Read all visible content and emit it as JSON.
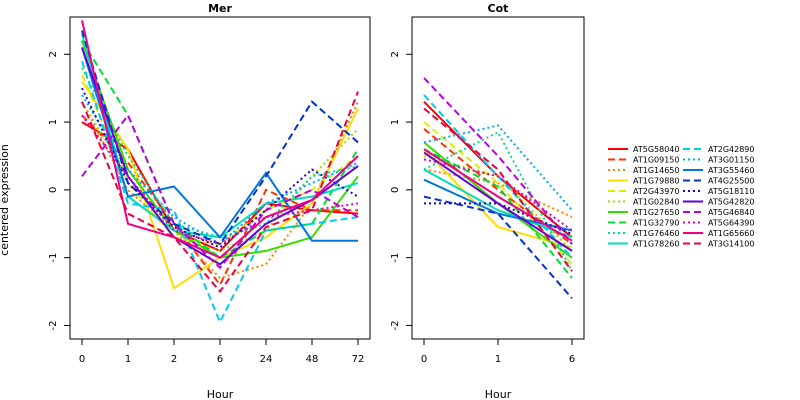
{
  "chart_data": {
    "type": "line",
    "ylabel": "centered expression",
    "panels": [
      {
        "title": "Mer",
        "xlabel": "Hour",
        "categories": [
          "0",
          "1",
          "2",
          "6",
          "24",
          "48",
          "72"
        ],
        "ylim": [
          -2.2,
          2.55
        ],
        "yticks": [
          -2,
          -1,
          0,
          1,
          2
        ],
        "series": [
          {
            "name": "AT5G58040",
            "values": [
              1.0,
              0.6,
              -0.6,
              -0.9,
              -0.2,
              -0.3,
              -0.35
            ]
          },
          {
            "name": "AT1G09150",
            "values": [
              1.1,
              0.4,
              -0.5,
              -1.4,
              0.0,
              -0.3,
              -0.3
            ]
          },
          {
            "name": "AT1G14650",
            "values": [
              1.3,
              0.0,
              -0.6,
              -1.3,
              -1.1,
              -0.2,
              1.3
            ]
          },
          {
            "name": "AT1G79880",
            "values": [
              1.6,
              0.6,
              -1.45,
              -1.0,
              -0.7,
              -0.2,
              1.2
            ]
          },
          {
            "name": "AT2G43970",
            "values": [
              1.7,
              0.1,
              -0.7,
              -0.8,
              -0.3,
              0.0,
              0.5
            ]
          },
          {
            "name": "AT1G02840",
            "values": [
              1.3,
              0.2,
              -0.7,
              -0.9,
              -0.6,
              0.2,
              0.9
            ]
          },
          {
            "name": "AT1G27650",
            "values": [
              2.2,
              0.3,
              -0.6,
              -1.0,
              -0.9,
              -0.7,
              0.2
            ]
          },
          {
            "name": "AT1G32790",
            "values": [
              2.2,
              1.1,
              -0.5,
              -1.0,
              -0.6,
              -0.5,
              0.6
            ]
          },
          {
            "name": "AT1G76460",
            "values": [
              1.8,
              0.5,
              -0.5,
              -0.7,
              -0.5,
              0.2,
              0.35
            ]
          },
          {
            "name": "AT1G78260",
            "values": [
              2.3,
              -0.1,
              -0.6,
              -0.7,
              -0.2,
              -0.1,
              0.1
            ]
          },
          {
            "name": "AT2G42890",
            "values": [
              1.9,
              -0.2,
              -0.3,
              -1.95,
              -0.6,
              -0.5,
              -0.4
            ]
          },
          {
            "name": "AT3G01150",
            "values": [
              1.4,
              0.3,
              -0.4,
              -0.8,
              -0.2,
              0.1,
              0.4
            ]
          },
          {
            "name": "AT3G55460",
            "values": [
              2.1,
              -0.1,
              0.05,
              -0.7,
              0.25,
              -0.75,
              -0.75
            ]
          },
          {
            "name": "AT4G25500",
            "values": [
              2.35,
              0.1,
              -0.5,
              -0.8,
              0.2,
              1.3,
              0.7
            ]
          },
          {
            "name": "AT5G18110",
            "values": [
              1.5,
              0.1,
              -0.55,
              -0.85,
              -0.3,
              0.3,
              -0.1
            ]
          },
          {
            "name": "AT5G42820",
            "values": [
              2.1,
              0.2,
              -0.7,
              -1.1,
              -0.5,
              -0.15,
              0.35
            ]
          },
          {
            "name": "AT5G46840",
            "values": [
              0.2,
              1.1,
              -0.5,
              -1.15,
              -0.3,
              0.0,
              -0.4
            ]
          },
          {
            "name": "AT5G64390",
            "values": [
              1.1,
              0.2,
              -0.6,
              -0.8,
              -0.4,
              -0.3,
              -0.2
            ]
          },
          {
            "name": "AT1G65660",
            "values": [
              2.5,
              -0.5,
              -0.7,
              -1.0,
              -0.4,
              -0.15,
              0.5
            ]
          },
          {
            "name": "AT3G14100",
            "values": [
              1.3,
              -0.35,
              -0.7,
              -1.5,
              -0.55,
              -0.3,
              1.45
            ]
          }
        ]
      },
      {
        "title": "Cot",
        "xlabel": "Hour",
        "categories": [
          "0",
          "1",
          "6"
        ],
        "ylim": [
          -2.2,
          2.55
        ],
        "yticks": [
          -2,
          -1,
          0,
          1,
          2
        ],
        "series": [
          {
            "name": "AT5G58040",
            "values": [
              1.3,
              0.2,
              -0.7
            ]
          },
          {
            "name": "AT1G09150",
            "values": [
              0.9,
              0.0,
              -0.8
            ]
          },
          {
            "name": "AT1G14650",
            "values": [
              0.3,
              0.1,
              -0.4
            ]
          },
          {
            "name": "AT1G79880",
            "values": [
              0.6,
              -0.55,
              -0.85
            ]
          },
          {
            "name": "AT2G43970",
            "values": [
              1.0,
              0.1,
              -1.1
            ]
          },
          {
            "name": "AT1G02840",
            "values": [
              0.5,
              0.2,
              -0.9
            ]
          },
          {
            "name": "AT1G27650",
            "values": [
              0.7,
              -0.2,
              -1.0
            ]
          },
          {
            "name": "AT1G32790",
            "values": [
              0.6,
              0.05,
              -1.3
            ]
          },
          {
            "name": "AT1G76460",
            "values": [
              0.3,
              0.85,
              -1.2
            ]
          },
          {
            "name": "AT1G78260",
            "values": [
              0.3,
              -0.3,
              -0.7
            ]
          },
          {
            "name": "AT2G42890",
            "values": [
              1.4,
              0.2,
              -1.0
            ]
          },
          {
            "name": "AT3G01150",
            "values": [
              0.7,
              0.95,
              -0.3
            ]
          },
          {
            "name": "AT3G55460",
            "values": [
              0.15,
              -0.35,
              -0.6
            ]
          },
          {
            "name": "AT4G25500",
            "values": [
              -0.1,
              -0.35,
              -1.6
            ]
          },
          {
            "name": "AT5G18110",
            "values": [
              -0.2,
              -0.2,
              -0.65
            ]
          },
          {
            "name": "AT5G42820",
            "values": [
              0.55,
              -0.2,
              -0.9
            ]
          },
          {
            "name": "AT5G46840",
            "values": [
              1.65,
              0.5,
              -0.8
            ]
          },
          {
            "name": "AT5G64390",
            "values": [
              0.45,
              0.2,
              -0.6
            ]
          },
          {
            "name": "AT1G65660",
            "values": [
              0.6,
              -0.1,
              -0.75
            ]
          },
          {
            "name": "AT3G14100",
            "values": [
              1.2,
              0.3,
              -1.2
            ]
          }
        ]
      }
    ],
    "legend": {
      "placement": "right",
      "entries": [
        {
          "name": "AT5G58040",
          "color": "#FF0000",
          "dash": "solid"
        },
        {
          "name": "AT1G09150",
          "color": "#FF3300",
          "dash": "dashed"
        },
        {
          "name": "AT1G14650",
          "color": "#FF8000",
          "dash": "dotted"
        },
        {
          "name": "AT1G79880",
          "color": "#FFDD00",
          "dash": "solid"
        },
        {
          "name": "AT2G43970",
          "color": "#DDEE00",
          "dash": "dashed"
        },
        {
          "name": "AT1G02840",
          "color": "#99DD00",
          "dash": "dotted"
        },
        {
          "name": "AT1G27650",
          "color": "#33DD00",
          "dash": "solid"
        },
        {
          "name": "AT1G32790",
          "color": "#00DD33",
          "dash": "dashed"
        },
        {
          "name": "AT1G76460",
          "color": "#00DD88",
          "dash": "dotted"
        },
        {
          "name": "AT1G78260",
          "color": "#00DDBB",
          "dash": "solid"
        },
        {
          "name": "AT2G42890",
          "color": "#00CCEE",
          "dash": "dashed"
        },
        {
          "name": "AT3G01150",
          "color": "#00AAEE",
          "dash": "dotted"
        },
        {
          "name": "AT3G55460",
          "color": "#0077DD",
          "dash": "solid"
        },
        {
          "name": "AT4G25500",
          "color": "#0033CC",
          "dash": "dashed"
        },
        {
          "name": "AT5G18110",
          "color": "#2200CC",
          "dash": "dotted"
        },
        {
          "name": "AT5G42820",
          "color": "#6600DD",
          "dash": "solid"
        },
        {
          "name": "AT5G46840",
          "color": "#BB00DD",
          "dash": "dashed"
        },
        {
          "name": "AT5G64390",
          "color": "#DD00BB",
          "dash": "dotted"
        },
        {
          "name": "AT1G65660",
          "color": "#EE0088",
          "dash": "solid"
        },
        {
          "name": "AT3G14100",
          "color": "#EE0044",
          "dash": "dashed"
        }
      ]
    }
  }
}
